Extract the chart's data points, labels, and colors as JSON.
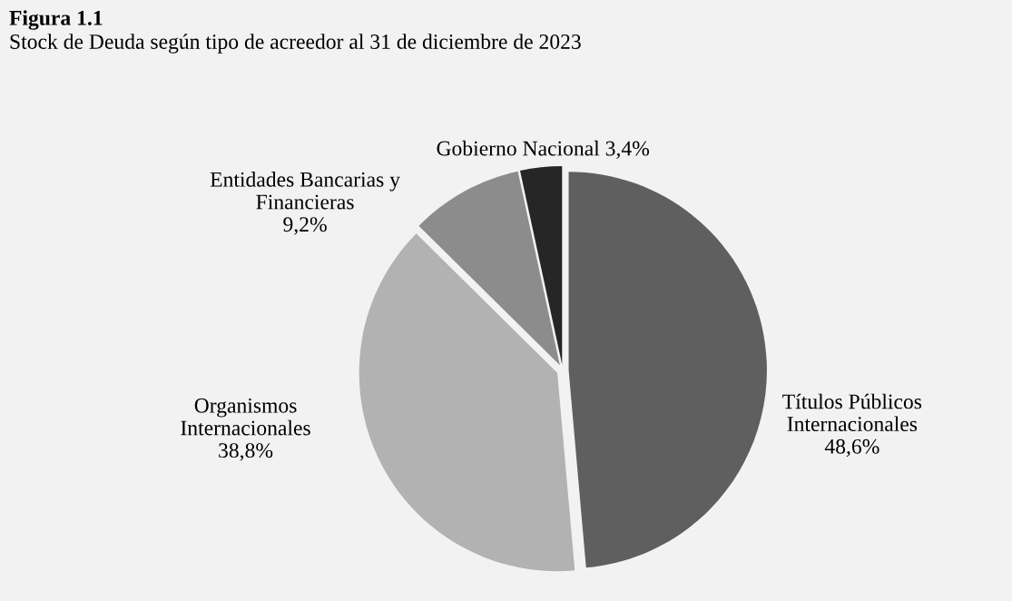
{
  "chart_data": {
    "type": "pie",
    "title": "Figura 1.1",
    "subtitle": "Stock de Deuda según tipo de acreedor al 31 de diciembre de 2023",
    "categories": [
      "Títulos Públicos\nInternacionales",
      "Organismos\nInternacionales",
      "Entidades Bancarias y\nFinancieras",
      "Gobierno Nacional"
    ],
    "values": [
      48.6,
      38.8,
      9.2,
      3.4
    ],
    "value_labels": [
      "48,6%",
      "38,8%",
      "9,2%",
      "3,4%"
    ],
    "colors": [
      "#5f5f5f",
      "#b2b2b2",
      "#8c8c8c",
      "#262626"
    ],
    "legend": false
  }
}
